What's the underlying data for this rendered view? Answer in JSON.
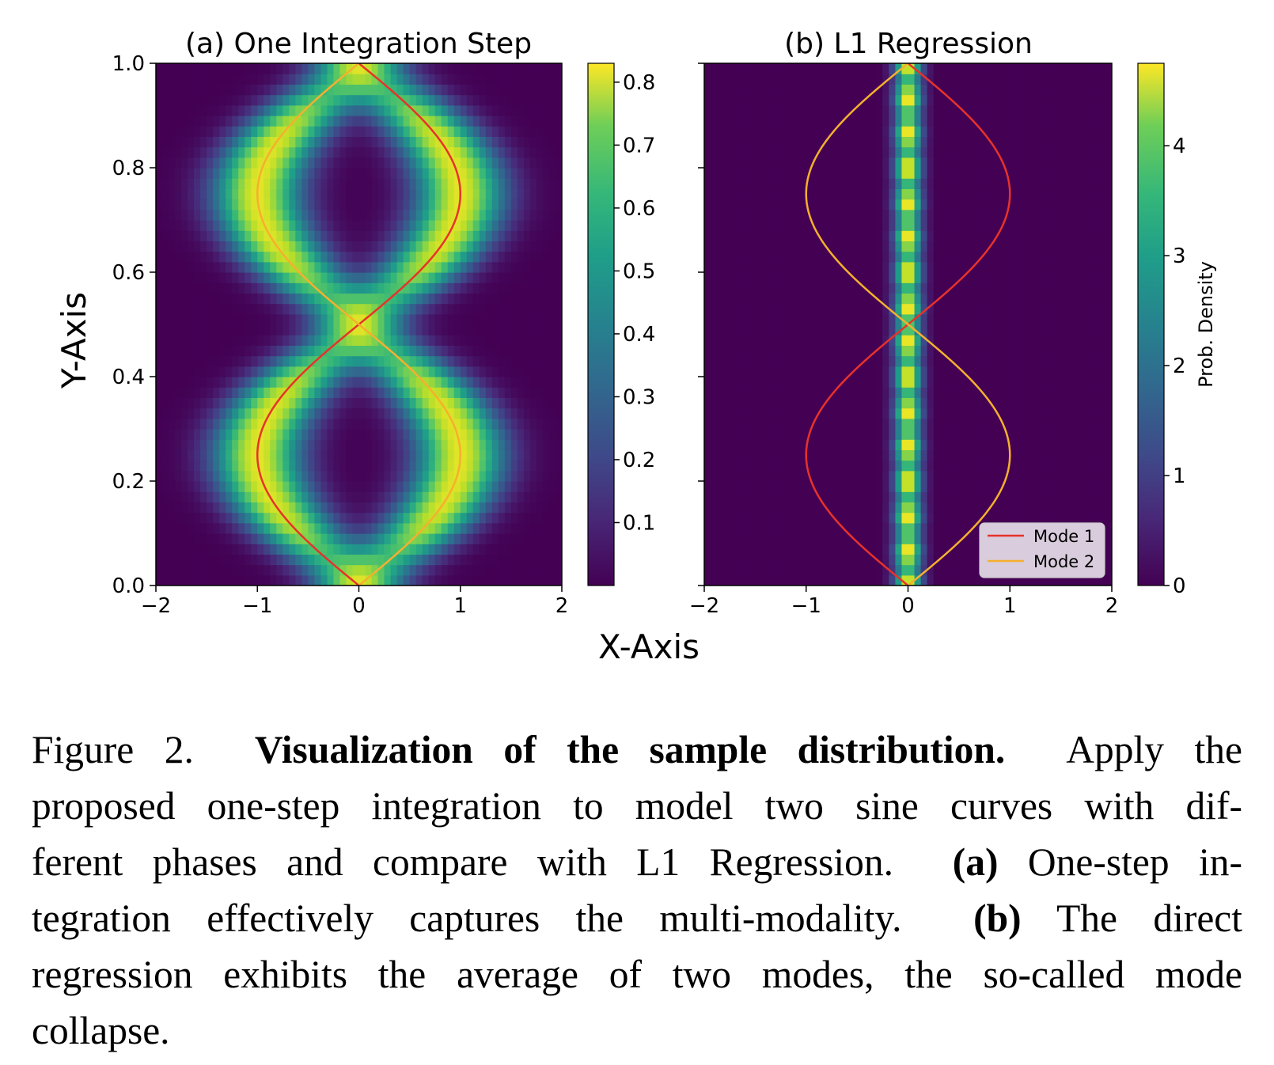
{
  "figure": {
    "x_axis_label": "X-Axis",
    "y_axis_label": "Y-Axis"
  },
  "chart_data": [
    {
      "type": "heatmap",
      "title": "(a) One Integration Step",
      "xlabel": "X-Axis",
      "ylabel": "Y-Axis",
      "xlim": [
        -2,
        2
      ],
      "ylim": [
        0,
        1
      ],
      "x_ticks": [
        -2,
        -1,
        0,
        1,
        2
      ],
      "x_tick_labels": [
        "−2",
        "−1",
        "0",
        "1",
        "2"
      ],
      "y_ticks": [
        0.0,
        0.2,
        0.4,
        0.6,
        0.8,
        1.0
      ],
      "y_tick_labels": [
        "0.0",
        "0.2",
        "0.4",
        "0.6",
        "0.8",
        "1.0"
      ],
      "colormap": "viridis",
      "colorbar": {
        "range": [
          0.0,
          0.83
        ],
        "ticks": [
          0.1,
          0.2,
          0.3,
          0.4,
          0.5,
          0.6,
          0.7,
          0.8
        ],
        "tick_labels": [
          "0.1",
          "0.2",
          "0.3",
          "0.4",
          "0.5",
          "0.6",
          "0.7",
          "0.8"
        ],
        "label": ""
      },
      "density_description": "smoothed density of two sine modes, peaks 0.8 near x=0 at y=0.0, 0.5, 1.0",
      "series": [
        {
          "name": "Mode 1",
          "color": "#e8322a",
          "function": "x = sin(2*pi*y + pi)",
          "y_range": [
            0,
            1
          ]
        },
        {
          "name": "Mode 2",
          "color": "#f5b02e",
          "function": "x = sin(2*pi*y)",
          "y_range": [
            0,
            1
          ]
        }
      ]
    },
    {
      "type": "heatmap",
      "title": "(b) L1 Regression",
      "xlabel": "X-Axis",
      "ylabel": "",
      "xlim": [
        -2,
        2
      ],
      "ylim": [
        0,
        1
      ],
      "x_ticks": [
        -2,
        -1,
        0,
        1,
        2
      ],
      "x_tick_labels": [
        "−2",
        "−1",
        "0",
        "1",
        "2"
      ],
      "y_ticks": [
        0.0,
        0.2,
        0.4,
        0.6,
        0.8,
        1.0
      ],
      "colormap": "viridis",
      "colorbar": {
        "range": [
          0,
          4.75
        ],
        "ticks": [
          0,
          1,
          2,
          3,
          4
        ],
        "tick_labels": [
          "0",
          "1",
          "2",
          "3",
          "4"
        ],
        "label": "Prob. Density"
      },
      "density_description": "narrow vertical band centered at x=0 (width about 0.4), peak about 4.5",
      "series": [
        {
          "name": "Mode 1",
          "color": "#e8322a",
          "function": "x = sin(2*pi*y + pi)",
          "y_range": [
            0,
            1
          ]
        },
        {
          "name": "Mode 2",
          "color": "#f5b02e",
          "function": "x = sin(2*pi*y)",
          "y_range": [
            0,
            1
          ]
        }
      ],
      "legend": {
        "position": "lower-right",
        "entries": [
          {
            "label": "Mode 1",
            "color": "#e8322a"
          },
          {
            "label": "Mode 2",
            "color": "#f5b02e"
          }
        ]
      }
    }
  ],
  "caption": {
    "label": "Figure 2.",
    "title": "Visualization of the sample distribution.",
    "line1_rest": "Apply the",
    "line2": "proposed one-step integration to model two sine curves with dif-",
    "line3_a": "ferent phases and compare with L1 Regression.",
    "line3_tag": "(a)",
    "line3_b": "One-step in-",
    "line4_a": "tegration effectively captures the multi-modality.",
    "line4_tag": "(b)",
    "line4_b": "The direct",
    "line5": "regression exhibits the average of two modes, the so-called mode",
    "line6": "collapse."
  }
}
